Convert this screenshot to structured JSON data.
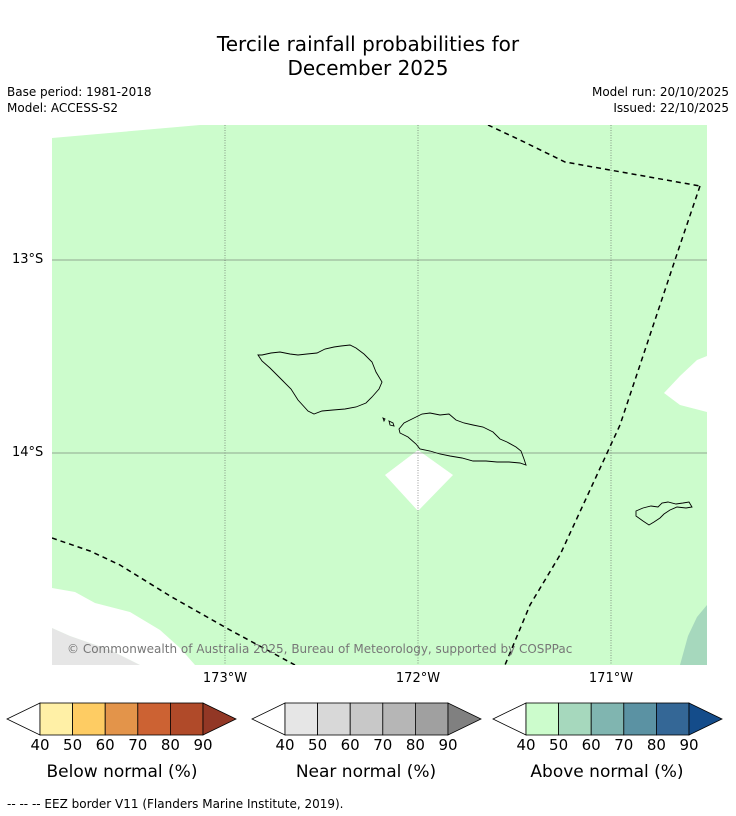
{
  "title": {
    "line1": "Tercile rainfall probabilities for",
    "line2": "December 2025"
  },
  "meta": {
    "base_period": "Base period: 1981-2018",
    "model": "Model: ACCESS-S2",
    "model_run": "Model run: 20/10/2025",
    "issued": "Issued: 22/10/2025"
  },
  "map": {
    "lat_labels": [
      "13°S",
      "14°S"
    ],
    "lon_labels": [
      "173°W",
      "172°W",
      "171°W"
    ],
    "copyright": "© Commonwealth of Australia 2025, Bureau of Meteorology, supported by COSPPac",
    "colors": {
      "above_40_50": "#ccfccc",
      "above_50_60": "#a6d8bd",
      "no_data": "#ffffff",
      "masked": "#e6e6e6"
    }
  },
  "colorbars": [
    {
      "label": "Below normal (%)",
      "ticks": [
        "40",
        "50",
        "60",
        "70",
        "80",
        "90"
      ],
      "colors": [
        "#fff0a6",
        "#fecc63",
        "#e3944a",
        "#cc6233",
        "#b04a29",
        "#923725"
      ]
    },
    {
      "label": "Near normal (%)",
      "ticks": [
        "40",
        "50",
        "60",
        "70",
        "80",
        "90"
      ],
      "colors": [
        "#e6e6e6",
        "#d8d8d8",
        "#c8c8c8",
        "#b6b6b6",
        "#a0a0a0",
        "#808080"
      ]
    },
    {
      "label": "Above normal (%)",
      "ticks": [
        "40",
        "50",
        "60",
        "70",
        "80",
        "90"
      ],
      "colors": [
        "#ccfccc",
        "#a6d8bd",
        "#80b5b0",
        "#5b92a3",
        "#346796",
        "#144c8a"
      ]
    }
  ],
  "legend": "--  --  -- EEZ border V11 (Flanders Marine Institute, 2019)."
}
